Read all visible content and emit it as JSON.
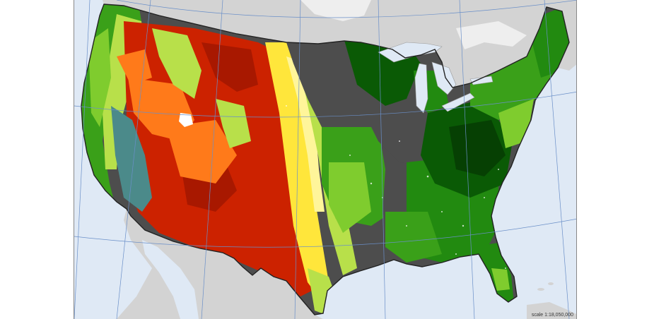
{
  "map": {
    "scale_label": "scale 1:18,050,000",
    "colors": {
      "ocean": "#dfe9f5",
      "land_neighbor": "#d3d3d3",
      "great_lakes": "#dfe9f5",
      "graticule": "#6a8fc8",
      "boundary": "#222222",
      "state_line": "#555555",
      "dark_gray": "#4d4d4d",
      "gray_mid": "#777777",
      "slate_teal": "#4b8a8a",
      "red": "#cc2200",
      "dark_red": "#a81800",
      "orange": "#ff7a1a",
      "yellow": "#ffe63b",
      "light_yellow": "#fff59a",
      "yellow_green": "#b8e04a",
      "light_green": "#7fcc2e",
      "green": "#3aa019",
      "mid_green": "#228a10",
      "dark_green": "#0a5a05",
      "darkest_green": "#064003",
      "white": "#ffffff"
    }
  }
}
